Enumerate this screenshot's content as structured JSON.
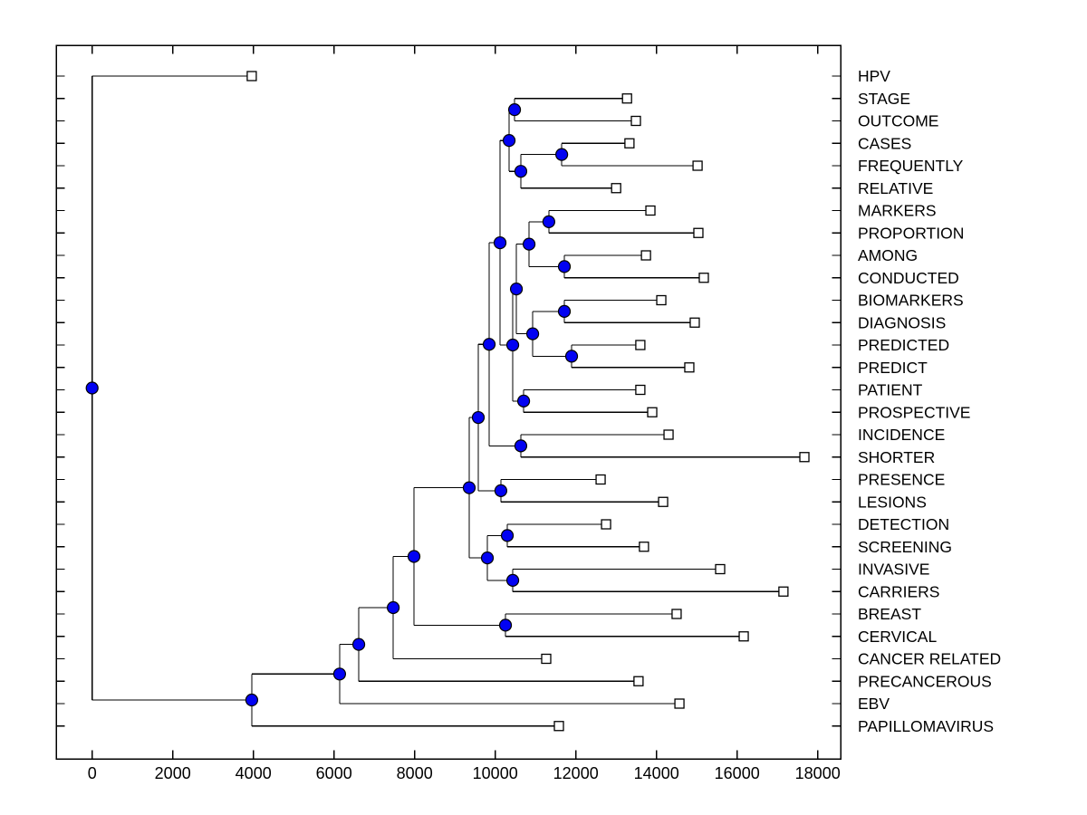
{
  "figure": {
    "background": "#ffffff",
    "description": "Horizontal dendrogram (hierarchical cluster tree) of term co-occurrence distances with leaf labels on the right"
  },
  "style": {
    "branch_color": "#000000",
    "axis_color": "#000000",
    "internal_node_fill": "#0202f2",
    "internal_node_edge": "#000000",
    "leaf_marker_fill": "#ffffff",
    "leaf_marker_edge": "#000000",
    "text_color": "#000000"
  },
  "chart_data": {
    "type": "dendrogram",
    "orientation": "horizontal, leaves on right",
    "title": "",
    "xlabel": "",
    "ylabel": "",
    "grid": false,
    "x_axis": {
      "tick_values": [
        0,
        2000,
        4000,
        6000,
        8000,
        10000,
        12000,
        14000,
        16000,
        18000
      ],
      "range": [
        -880,
        18860
      ]
    },
    "leaf_labels": [
      "HPV",
      "STAGE",
      "OUTCOME",
      "CASES",
      "FREQUENTLY",
      "RELATIVE",
      "MARKERS",
      "PROPORTION",
      "AMONG",
      "CONDUCTED",
      "BIOMARKERS",
      "DIAGNOSIS",
      "PREDICTED",
      "PREDICT",
      "PATIENT",
      "PROSPECTIVE",
      "INCIDENCE",
      "SHORTER",
      "PRESENCE",
      "LESIONS",
      "DETECTION",
      "SCREENING",
      "INVASIVE",
      "CARRIERS",
      "BREAST",
      "CERVICAL",
      "CANCER RELATED",
      "PRECANCEROUS",
      "EBV",
      "PAPILLOMAVIRUS"
    ],
    "tree": {
      "dist": 0,
      "children": [
        {
          "name": "HPV",
          "dist": 3960
        },
        {
          "dist": 3960,
          "children": [
            {
              "dist": 6140,
              "children": [
                {
                  "dist": 6615,
                  "children": [
                    {
                      "dist": 7470,
                      "children": [
                        {
                          "dist": 7985,
                          "children": [
                            {
                              "dist": 9355,
                              "children": [
                                {
                                  "dist": 9580,
                                  "children": [
                                    {
                                      "dist": 9850,
                                      "children": [
                                        {
                                          "dist": 10120,
                                          "children": [
                                            {
                                              "dist": 10345,
                                              "children": [
                                                {
                                                  "dist": 10480,
                                                  "children": [
                                                    {
                                                      "name": "STAGE",
                                                      "dist": 13270
                                                    },
                                                    {
                                                      "name": "OUTCOME",
                                                      "dist": 13490
                                                    }
                                                  ]
                                                },
                                                {
                                                  "dist": 10635,
                                                  "children": [
                                                    {
                                                      "dist": 11650,
                                                      "children": [
                                                        {
                                                          "name": "CASES",
                                                          "dist": 13330
                                                        },
                                                        {
                                                          "name": "FREQUENTLY",
                                                          "dist": 15020
                                                        }
                                                      ]
                                                    },
                                                    {
                                                      "name": "RELATIVE",
                                                      "dist": 13000
                                                    }
                                                  ]
                                                }
                                              ]
                                            },
                                            {
                                              "dist": 10435,
                                              "children": [
                                                {
                                                  "dist": 10525,
                                                  "children": [
                                                    {
                                                      "dist": 10840,
                                                      "children": [
                                                        {
                                                          "dist": 11330,
                                                          "children": [
                                                            {
                                                              "name": "MARKERS",
                                                              "dist": 13850
                                                            },
                                                            {
                                                              "name": "PROPORTION",
                                                              "dist": 15040
                                                            }
                                                          ]
                                                        },
                                                        {
                                                          "dist": 11715,
                                                          "children": [
                                                            {
                                                              "name": "AMONG",
                                                              "dist": 13740
                                                            },
                                                            {
                                                              "name": "CONDUCTED",
                                                              "dist": 15175
                                                            }
                                                          ]
                                                        }
                                                      ]
                                                    },
                                                    {
                                                      "dist": 10930,
                                                      "children": [
                                                        {
                                                          "dist": 11715,
                                                          "children": [
                                                            {
                                                              "name": "BIOMARKERS",
                                                              "dist": 14120
                                                            },
                                                            {
                                                              "name": "DIAGNOSIS",
                                                              "dist": 14950
                                                            }
                                                          ]
                                                        },
                                                        {
                                                          "dist": 11895,
                                                          "children": [
                                                            {
                                                              "name": "PREDICTED",
                                                              "dist": 13600
                                                            },
                                                            {
                                                              "name": "PREDICT",
                                                              "dist": 14815
                                                            }
                                                          ]
                                                        }
                                                      ]
                                                    }
                                                  ]
                                                },
                                                {
                                                  "dist": 10705,
                                                  "children": [
                                                    {
                                                      "name": "PATIENT",
                                                      "dist": 13600
                                                    },
                                                    {
                                                      "name": "PROSPECTIVE",
                                                      "dist": 13895
                                                    }
                                                  ]
                                                }
                                              ]
                                            }
                                          ]
                                        },
                                        {
                                          "dist": 10635,
                                          "children": [
                                            {
                                              "name": "INCIDENCE",
                                              "dist": 14300
                                            },
                                            {
                                              "name": "SHORTER",
                                              "dist": 17670
                                            }
                                          ]
                                        }
                                      ]
                                    },
                                    {
                                      "dist": 10140,
                                      "children": [
                                        {
                                          "name": "PRESENCE",
                                          "dist": 12615
                                        },
                                        {
                                          "name": "LESIONS",
                                          "dist": 14165
                                        }
                                      ]
                                    }
                                  ]
                                },
                                {
                                  "dist": 9805,
                                  "children": [
                                    {
                                      "dist": 10300,
                                      "children": [
                                        {
                                          "name": "DETECTION",
                                          "dist": 12750
                                        },
                                        {
                                          "name": "SCREENING",
                                          "dist": 13690
                                        }
                                      ]
                                    },
                                    {
                                      "dist": 10435,
                                      "children": [
                                        {
                                          "name": "INVASIVE",
                                          "dist": 15580
                                        },
                                        {
                                          "name": "CARRIERS",
                                          "dist": 17150
                                        }
                                      ]
                                    }
                                  ]
                                }
                              ]
                            },
                            {
                              "dist": 10255,
                              "children": [
                                {
                                  "name": "BREAST",
                                  "dist": 14500
                                },
                                {
                                  "name": "CERVICAL",
                                  "dist": 16165
                                }
                              ]
                            }
                          ]
                        },
                        {
                          "name": "CANCER RELATED",
                          "dist": 11265
                        }
                      ]
                    },
                    {
                      "name": "PRECANCEROUS",
                      "dist": 13555
                    }
                  ]
                },
                {
                  "name": "EBV",
                  "dist": 14570
                }
              ]
            },
            {
              "name": "PAPILLOMAVIRUS",
              "dist": 11580
            }
          ]
        }
      ]
    }
  }
}
